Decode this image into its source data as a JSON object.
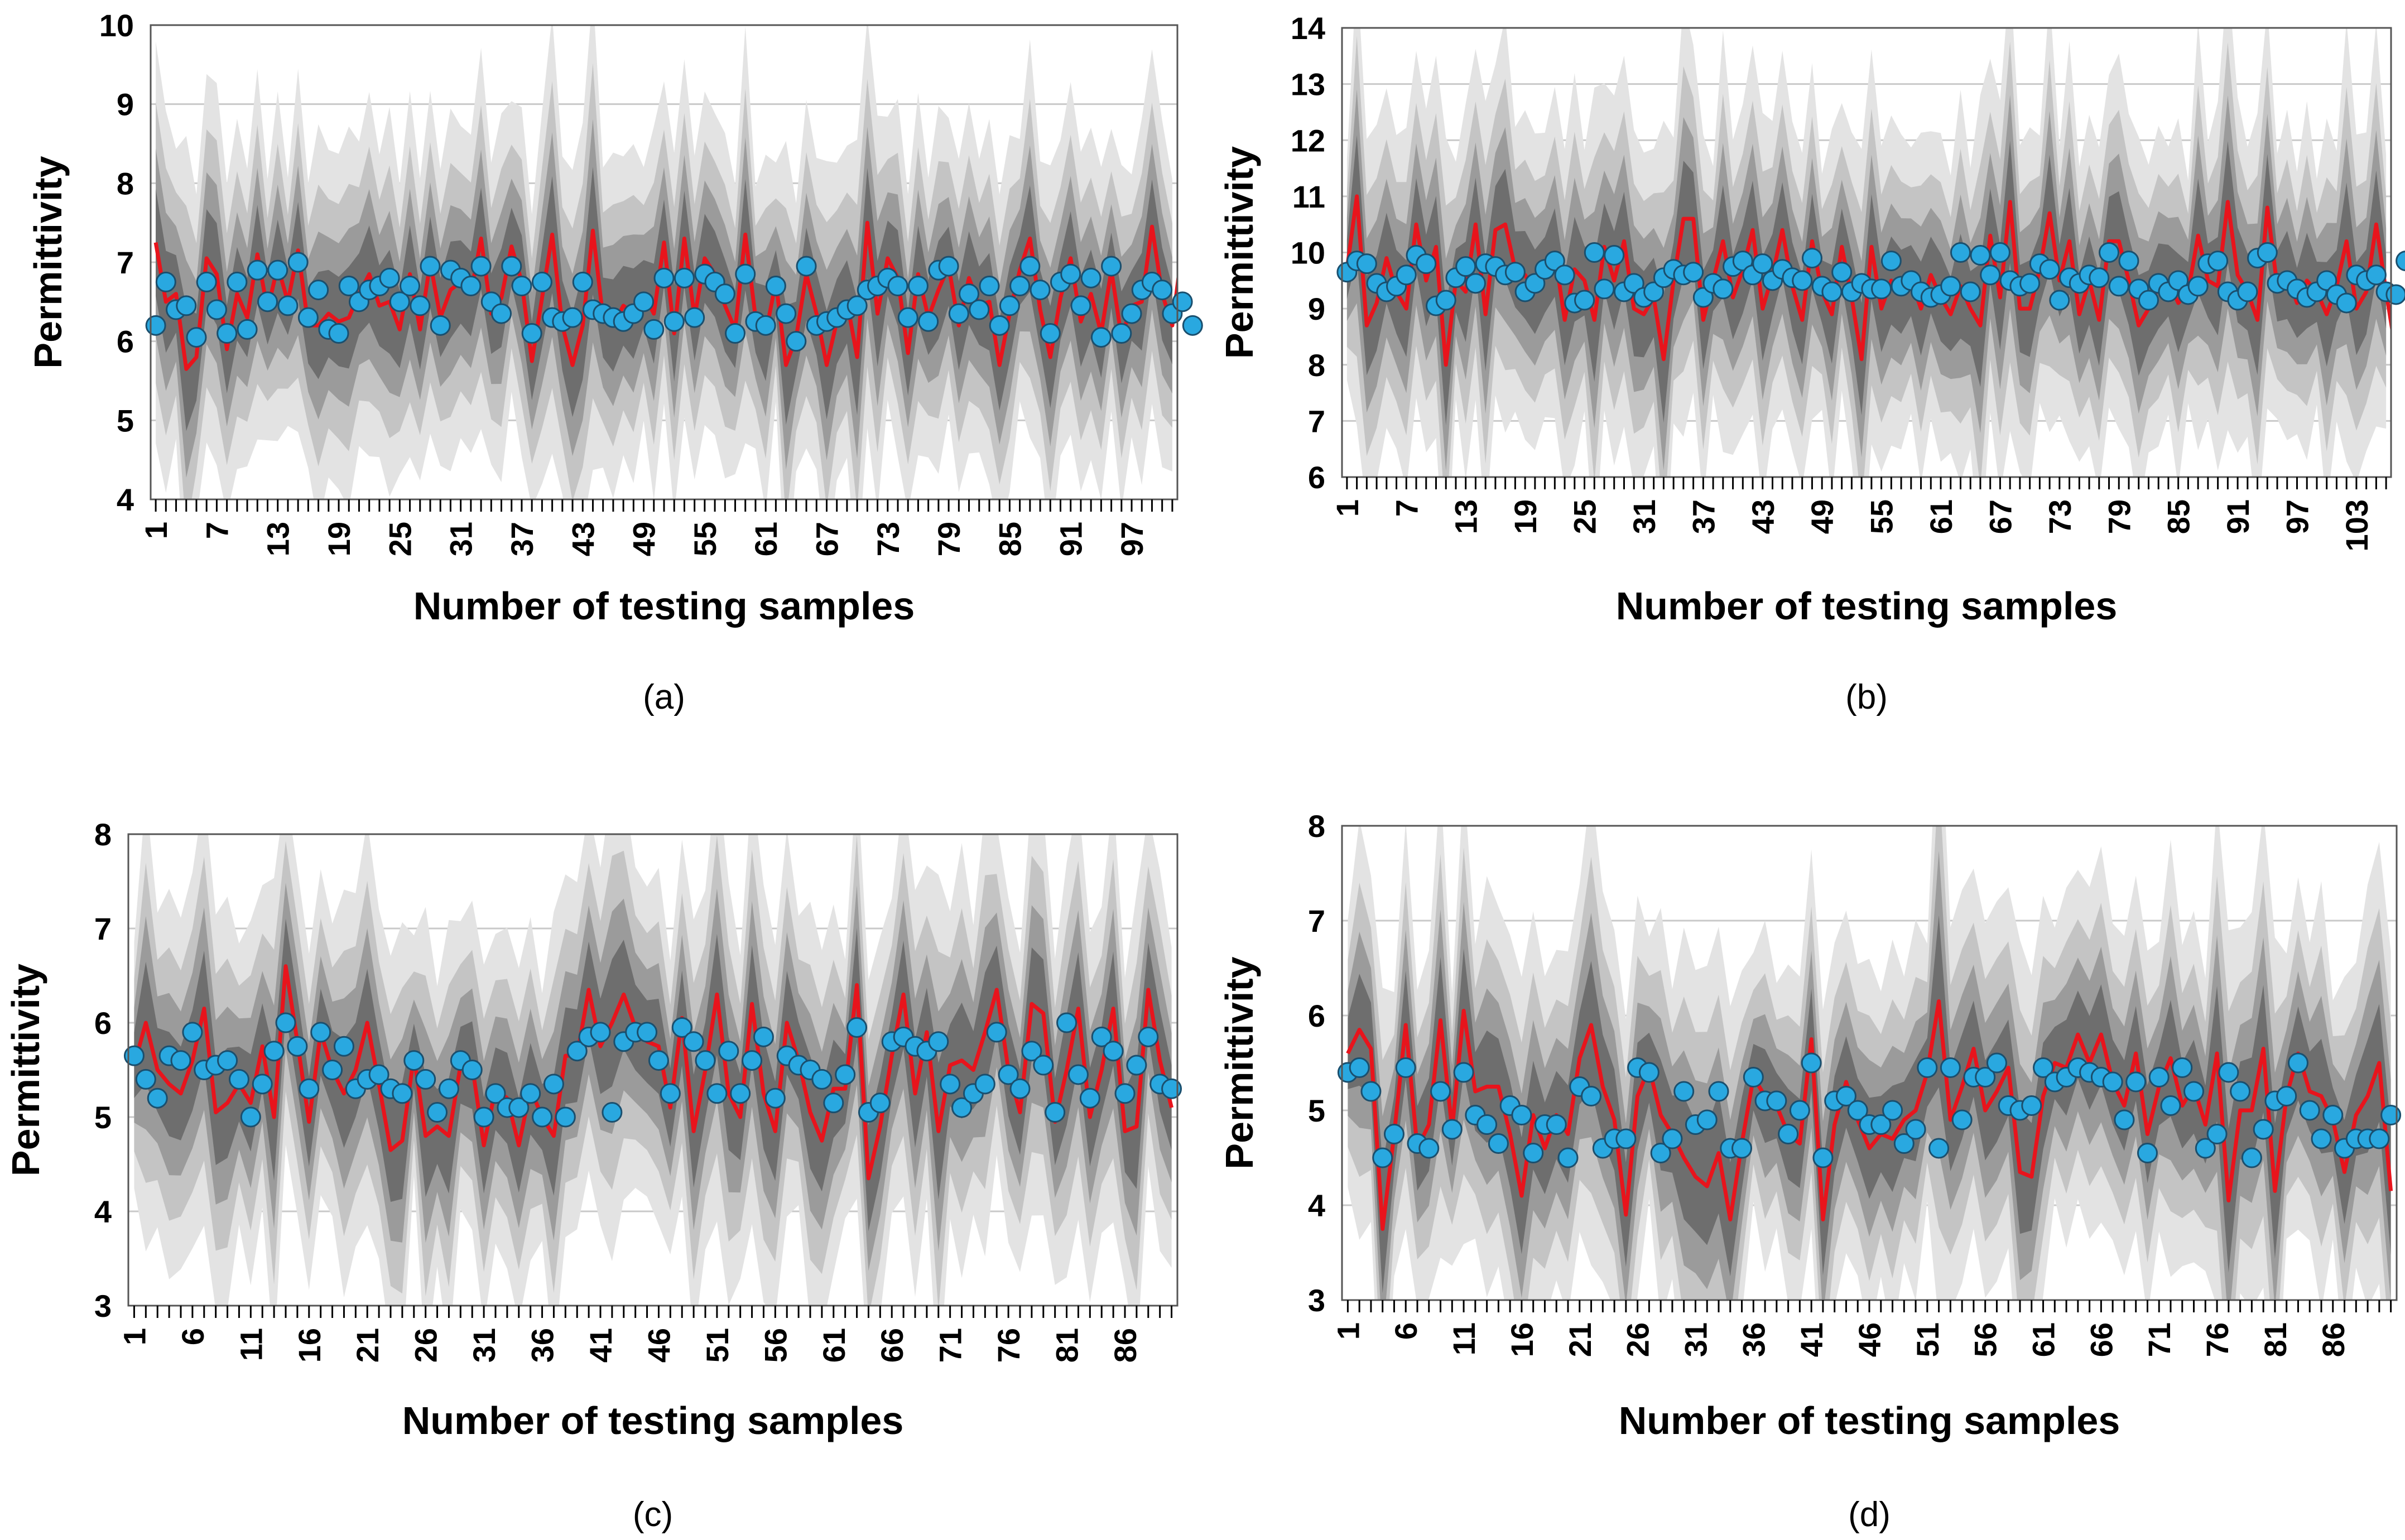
{
  "figure": {
    "colors": {
      "band_outer": "#e3e3e3",
      "band_mid": "#c4c4c4",
      "band_inner": "#9b9b9b",
      "band_core": "#6e6e6e",
      "mean_line": "#e8141c",
      "marker_fill": "#29a8e0",
      "marker_stroke": "#1a4f6e",
      "grid": "#c9c9c9"
    }
  },
  "chart_data": [
    {
      "type": "line",
      "caption": "(a)",
      "xlabel": "Number of testing samples",
      "ylabel": "Permittivity",
      "ylim": [
        4,
        10
      ],
      "yticks": [
        4,
        5,
        6,
        7,
        8,
        9,
        10
      ],
      "n_samples": 101,
      "xtick_labels": [
        "1",
        "7",
        "13",
        "19",
        "25",
        "31",
        "37",
        "43",
        "49",
        "55",
        "61",
        "67",
        "73",
        "79",
        "85",
        "91",
        "97"
      ],
      "xtick_step": 6,
      "grid": true,
      "series": [
        {
          "role": "measured",
          "values": [
            6.2,
            6.75,
            6.4,
            6.45,
            6.05,
            6.75,
            6.4,
            6.1,
            6.75,
            6.15,
            6.9,
            6.5,
            6.9,
            6.45,
            7.0,
            6.3,
            6.65,
            6.15,
            6.1,
            6.7,
            6.5,
            6.65,
            6.7,
            6.8,
            6.5,
            6.7,
            6.45,
            6.95,
            6.2,
            6.9,
            6.8,
            6.7,
            6.95,
            6.5,
            6.35,
            6.95,
            6.7,
            6.1,
            6.75,
            6.3,
            6.25,
            6.3,
            6.75,
            6.4,
            6.35,
            6.3,
            6.25,
            6.35,
            6.5,
            6.15,
            6.8,
            6.25,
            6.8,
            6.3,
            6.85,
            6.75,
            6.6,
            6.1,
            6.85,
            6.25,
            6.2,
            6.7,
            6.35,
            6.0,
            6.95,
            6.2,
            6.25,
            6.3,
            6.4,
            6.45,
            6.65,
            6.7,
            6.8,
            6.7,
            6.3,
            6.7,
            6.25,
            6.9,
            6.95,
            6.35,
            6.6,
            6.4,
            6.7,
            6.2,
            6.45,
            6.7,
            6.95,
            6.65,
            6.1,
            6.75,
            6.85,
            6.45,
            6.8,
            6.05,
            6.95,
            6.1,
            6.35,
            6.65,
            6.75,
            6.65,
            6.35,
            6.5,
            6.2
          ]
        },
        {
          "role": "predicted",
          "values": [
            7.25,
            6.5,
            6.6,
            5.65,
            5.8,
            7.05,
            6.85,
            5.9,
            6.6,
            6.3,
            7.1,
            6.4,
            6.95,
            6.5,
            7.15,
            6.2,
            6.2,
            6.35,
            6.25,
            6.3,
            6.6,
            6.85,
            6.45,
            6.5,
            6.15,
            6.85,
            6.15,
            7.0,
            6.3,
            6.65,
            6.75,
            6.6,
            7.3,
            6.35,
            6.55,
            7.2,
            6.75,
            5.75,
            6.55,
            7.35,
            6.2,
            5.7,
            6.2,
            7.4,
            6.3,
            6.2,
            6.45,
            6.35,
            6.6,
            6.35,
            7.25,
            6.1,
            7.3,
            6.3,
            7.05,
            6.85,
            6.45,
            6.15,
            7.35,
            6.3,
            6.1,
            6.75,
            5.7,
            6.05,
            6.85,
            6.35,
            5.7,
            6.25,
            6.5,
            5.8,
            7.5,
            6.35,
            7.05,
            6.8,
            5.85,
            6.85,
            6.3,
            6.65,
            6.95,
            6.2,
            6.8,
            6.45,
            6.5,
            5.7,
            6.35,
            6.9,
            7.3,
            6.4,
            5.8,
            6.55,
            7.05,
            6.25,
            6.6,
            6.1,
            6.9,
            6.05,
            6.45,
            6.5,
            7.45,
            6.6,
            6.2,
            7.2,
            5.7
          ]
        }
      ]
    },
    {
      "type": "line",
      "caption": "(b)",
      "xlabel": "Number of testing samples",
      "ylabel": "Permittivity",
      "ylim": [
        6,
        14
      ],
      "yticks": [
        6,
        7,
        8,
        9,
        10,
        11,
        12,
        13,
        14
      ],
      "n_samples": 106,
      "xtick_labels": [
        "1",
        "7",
        "13",
        "19",
        "25",
        "31",
        "37",
        "43",
        "49",
        "55",
        "61",
        "67",
        "73",
        "79",
        "85",
        "91",
        "97",
        "103"
      ],
      "xtick_step": 6,
      "grid": true,
      "series": [
        {
          "role": "measured",
          "values": [
            9.65,
            9.85,
            9.8,
            9.45,
            9.3,
            9.4,
            9.6,
            9.95,
            9.8,
            9.05,
            9.15,
            9.55,
            9.75,
            9.45,
            9.8,
            9.75,
            9.6,
            9.65,
            9.3,
            9.45,
            9.7,
            9.85,
            9.6,
            9.1,
            9.15,
            10.0,
            9.35,
            9.95,
            9.3,
            9.45,
            9.2,
            9.3,
            9.55,
            9.7,
            9.6,
            9.65,
            9.2,
            9.45,
            9.35,
            9.75,
            9.85,
            9.6,
            9.8,
            9.5,
            9.7,
            9.55,
            9.5,
            9.9,
            9.4,
            9.3,
            9.65,
            9.3,
            9.45,
            9.35,
            9.35,
            9.85,
            9.4,
            9.5,
            9.3,
            9.2,
            9.25,
            9.4,
            10.0,
            9.3,
            9.95,
            9.6,
            10.0,
            9.5,
            9.4,
            9.45,
            9.8,
            9.7,
            9.15,
            9.55,
            9.45,
            9.6,
            9.55,
            10.0,
            9.4,
            9.85,
            9.35,
            9.15,
            9.45,
            9.3,
            9.5,
            9.25,
            9.4,
            9.8,
            9.85,
            9.3,
            9.15,
            9.3,
            9.9,
            10.0,
            9.45,
            9.5,
            9.35,
            9.2,
            9.3,
            9.5,
            9.25,
            9.1,
            9.6,
            9.5,
            9.6,
            9.3,
            9.25,
            9.85
          ]
        },
        {
          "role": "predicted",
          "values": [
            9.7,
            11.0,
            8.7,
            9.1,
            9.9,
            9.3,
            9.0,
            10.5,
            9.5,
            10.1,
            8.0,
            9.5,
            9.3,
            10.5,
            8.9,
            10.4,
            10.5,
            9.7,
            9.6,
            9.3,
            9.6,
            10.0,
            8.8,
            9.7,
            9.5,
            8.8,
            10.1,
            9.5,
            10.2,
            9.0,
            8.9,
            9.2,
            8.1,
            9.5,
            10.6,
            10.6,
            8.8,
            9.5,
            10.2,
            9.2,
            9.7,
            10.4,
            9.0,
            9.6,
            10.4,
            9.4,
            8.8,
            10.2,
            9.3,
            8.9,
            10.1,
            9.2,
            8.1,
            10.1,
            9.0,
            9.5,
            9.3,
            9.5,
            9.0,
            9.6,
            9.2,
            8.9,
            9.4,
            9.0,
            8.7,
            10.3,
            9.2,
            10.9,
            9.0,
            9.0,
            9.7,
            10.7,
            9.5,
            10.2,
            8.9,
            9.5,
            8.8,
            10.2,
            10.2,
            9.5,
            8.7,
            9.0,
            9.4,
            9.5,
            9.1,
            9.3,
            10.3,
            9.5,
            9.4,
            10.9,
            9.6,
            9.3,
            8.8,
            10.8,
            9.4,
            9.6,
            9.1,
            9.5,
            9.3,
            8.9,
            9.4,
            10.2,
            9.0,
            9.3,
            10.5,
            9.3,
            8.2,
            10.1
          ]
        }
      ]
    },
    {
      "type": "line",
      "caption": "(c)",
      "xlabel": "Number of testing samples",
      "ylabel": "Permittivity",
      "ylim": [
        3,
        8
      ],
      "yticks": [
        3,
        4,
        5,
        6,
        7,
        8
      ],
      "n_samples": 90,
      "xtick_labels": [
        "1",
        "6",
        "11",
        "16",
        "21",
        "26",
        "31",
        "36",
        "41",
        "46",
        "51",
        "56",
        "61",
        "66",
        "71",
        "76",
        "81",
        "86"
      ],
      "xtick_step": 5,
      "grid": true,
      "series": [
        {
          "role": "measured",
          "values": [
            5.65,
            5.4,
            5.2,
            5.65,
            5.6,
            5.9,
            5.5,
            5.55,
            5.6,
            5.4,
            5.0,
            5.35,
            5.7,
            6.0,
            5.75,
            5.3,
            5.9,
            5.5,
            5.75,
            5.3,
            5.4,
            5.45,
            5.3,
            5.25,
            5.6,
            5.4,
            5.05,
            5.3,
            5.6,
            5.5,
            5.0,
            5.25,
            5.1,
            5.1,
            5.25,
            5.0,
            5.35,
            5.0,
            5.7,
            5.85,
            5.9,
            5.05,
            5.8,
            5.9,
            5.9,
            5.6,
            5.25,
            5.95,
            5.8,
            5.6,
            5.25,
            5.7,
            5.25,
            5.6,
            5.85,
            5.2,
            5.65,
            5.55,
            5.5,
            5.4,
            5.15,
            5.45,
            5.95,
            5.05,
            5.15,
            5.8,
            5.85,
            5.75,
            5.7,
            5.8,
            5.35,
            5.1,
            5.25,
            5.35,
            5.9,
            5.45,
            5.3,
            5.7,
            5.55,
            5.05,
            6.0,
            5.45,
            5.2,
            5.85,
            5.7,
            5.25,
            5.55,
            5.85,
            5.35,
            5.3
          ]
        },
        {
          "role": "predicted",
          "values": [
            5.55,
            6.0,
            5.5,
            5.35,
            5.25,
            5.6,
            6.15,
            5.05,
            5.15,
            5.35,
            5.15,
            5.75,
            5.0,
            6.6,
            5.8,
            4.95,
            5.9,
            5.5,
            5.25,
            5.5,
            6.0,
            5.35,
            4.65,
            4.75,
            5.65,
            4.8,
            4.9,
            4.8,
            5.55,
            5.55,
            4.7,
            5.3,
            5.2,
            4.7,
            5.3,
            5.0,
            4.8,
            5.65,
            5.65,
            6.35,
            5.75,
            6.0,
            6.3,
            5.95,
            5.8,
            5.75,
            5.1,
            6.05,
            4.85,
            5.5,
            6.3,
            5.25,
            5.0,
            6.2,
            5.25,
            4.85,
            6.0,
            5.6,
            5.05,
            4.75,
            5.3,
            5.3,
            6.4,
            4.35,
            4.9,
            5.65,
            6.3,
            5.25,
            5.9,
            4.85,
            5.55,
            5.6,
            5.5,
            5.9,
            6.35,
            5.5,
            5.05,
            6.2,
            6.1,
            4.95,
            5.5,
            6.15,
            5.0,
            5.5,
            6.15,
            4.85,
            4.9,
            6.35,
            5.6,
            5.1
          ]
        }
      ]
    },
    {
      "type": "line",
      "caption": "(d)",
      "xlabel": "Number of testing samples",
      "ylabel": "Permittivity",
      "ylim": [
        3,
        8
      ],
      "yticks": [
        3,
        4,
        5,
        6,
        7,
        8
      ],
      "n_samples": 91,
      "xtick_labels": [
        "1",
        "6",
        "11",
        "16",
        "21",
        "26",
        "31",
        "36",
        "41",
        "46",
        "51",
        "56",
        "61",
        "66",
        "71",
        "76",
        "81",
        "86"
      ],
      "xtick_step": 5,
      "grid": true,
      "series": [
        {
          "role": "measured",
          "values": [
            5.4,
            5.45,
            5.2,
            4.5,
            4.75,
            5.45,
            4.65,
            4.6,
            5.2,
            4.8,
            5.4,
            4.95,
            4.85,
            4.65,
            5.05,
            4.95,
            4.55,
            4.85,
            4.85,
            4.5,
            5.25,
            5.15,
            4.6,
            4.7,
            4.7,
            5.45,
            5.4,
            4.55,
            4.7,
            5.2,
            4.85,
            4.9,
            5.2,
            4.6,
            4.6,
            5.35,
            5.1,
            5.1,
            4.75,
            5.0,
            5.5,
            4.5,
            5.1,
            5.15,
            5.0,
            4.85,
            4.85,
            5.0,
            4.65,
            4.8,
            5.45,
            4.6,
            5.45,
            4.9,
            5.35,
            5.35,
            5.5,
            5.05,
            5.0,
            5.05,
            5.45,
            5.3,
            5.35,
            5.45,
            5.4,
            5.35,
            5.3,
            4.9,
            5.3,
            4.55,
            5.35,
            5.05,
            5.45,
            5.2,
            4.6,
            4.75,
            5.4,
            5.2,
            4.5,
            4.8,
            5.1,
            5.15,
            5.5,
            5.0,
            4.7,
            4.95,
            4.6,
            4.7,
            4.7,
            4.7,
            4.95
          ]
        },
        {
          "role": "predicted",
          "values": [
            5.6,
            5.85,
            5.65,
            3.75,
            4.75,
            5.9,
            4.6,
            4.85,
            5.95,
            4.8,
            6.05,
            5.2,
            5.25,
            5.25,
            4.75,
            4.1,
            4.95,
            4.6,
            4.95,
            4.75,
            5.55,
            5.9,
            5.25,
            4.9,
            3.9,
            5.15,
            5.45,
            4.95,
            4.75,
            4.5,
            4.3,
            4.2,
            4.55,
            3.85,
            4.65,
            5.35,
            5.15,
            5.05,
            4.75,
            4.65,
            5.75,
            3.85,
            4.85,
            5.3,
            4.9,
            4.6,
            4.75,
            4.7,
            4.9,
            5.0,
            5.4,
            6.15,
            4.9,
            5.25,
            5.65,
            5.0,
            5.2,
            5.45,
            4.35,
            4.3,
            5.15,
            5.5,
            5.45,
            5.8,
            5.5,
            5.8,
            5.3,
            5.05,
            5.6,
            4.75,
            5.25,
            5.55,
            5.05,
            5.25,
            4.85,
            5.6,
            4.05,
            5.0,
            5.0,
            5.65,
            4.15,
            5.15,
            5.6,
            5.2,
            5.15,
            4.9,
            4.35,
            4.95,
            5.15,
            5.5,
            4.15
          ]
        }
      ]
    }
  ]
}
